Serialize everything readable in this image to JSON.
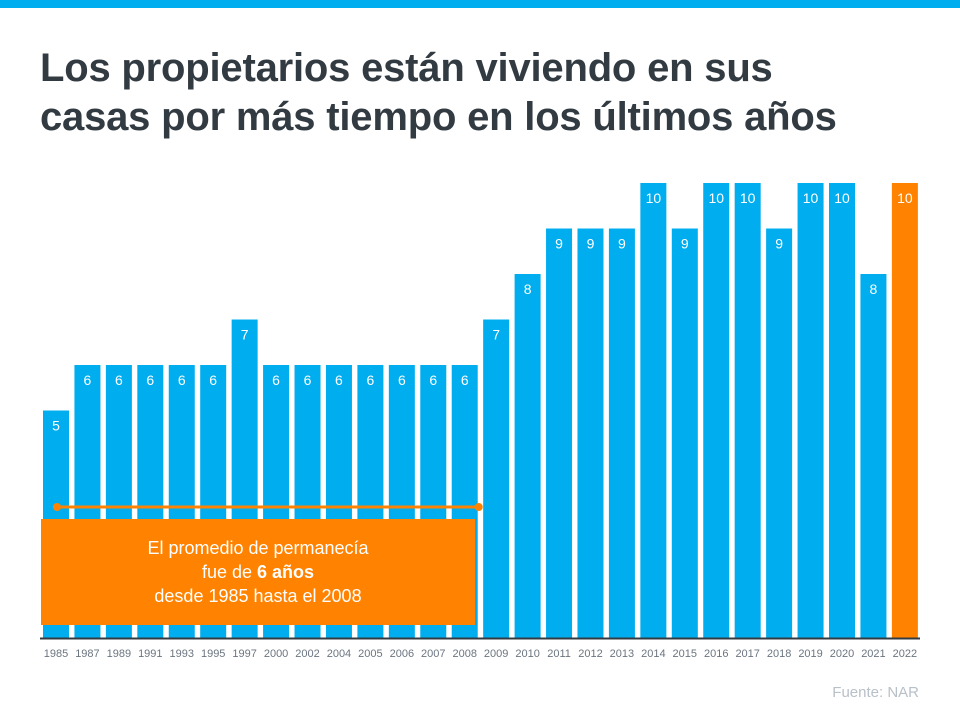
{
  "title_line1": "Los propietarios están viviendo en sus",
  "title_line2": "casas por más tiempo en los últimos años",
  "callout": {
    "line1": "El promedio de permanecía",
    "line2_prefix": "fue de ",
    "line2_bold": "6 años",
    "line3": "desde 1985 hasta el 2008"
  },
  "source": "Fuente:  NAR",
  "colors": {
    "bar": "#00adef",
    "highlight": "#ff8300",
    "axis": "#333b42"
  },
  "chart_data": {
    "type": "bar",
    "title": "Los propietarios están viviendo en sus casas por más tiempo en los últimos años",
    "categories": [
      "1985",
      "1987",
      "1989",
      "1991",
      "1993",
      "1995",
      "1997",
      "2000",
      "2002",
      "2004",
      "2005",
      "2006",
      "2007",
      "2008",
      "2009",
      "2010",
      "2011",
      "2012",
      "2013",
      "2014",
      "2015",
      "2016",
      "2017",
      "2018",
      "2019",
      "2020",
      "2021",
      "2022"
    ],
    "values": [
      5,
      6,
      6,
      6,
      6,
      6,
      7,
      6,
      6,
      6,
      6,
      6,
      6,
      6,
      7,
      8,
      9,
      9,
      9,
      10,
      9,
      10,
      10,
      9,
      10,
      10,
      8,
      10
    ],
    "highlight_category": "2022",
    "average_line": {
      "value": 6,
      "from": "1985",
      "to": "2008"
    },
    "ylim": [
      0,
      10
    ],
    "grid": false,
    "xlabel": "",
    "ylabel": ""
  }
}
